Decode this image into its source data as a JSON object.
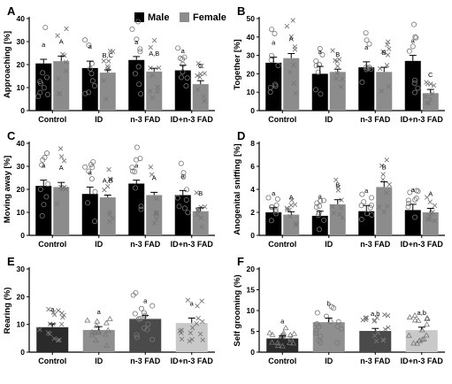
{
  "legend": {
    "position": "top-center",
    "items": [
      {
        "label": "Male",
        "color": "#000000"
      },
      {
        "label": "Female",
        "color": "#8c8c8c"
      }
    ]
  },
  "chart_data": [
    {
      "panel": "A",
      "type": "bar",
      "ylabel": "Approaching [%]",
      "ylim": [
        0,
        40
      ],
      "yticks": [
        0,
        10,
        20,
        30,
        40
      ],
      "categories": [
        "Control",
        "ID",
        "n-3 FAD",
        "ID+n-3 FAD"
      ],
      "series": [
        {
          "name": "Male",
          "values": [
            20.5,
            18.5,
            22,
            17.5
          ],
          "sem": [
            1.8,
            3,
            1.5,
            2.2
          ],
          "letters": [
            "a",
            "a",
            "a",
            "a"
          ]
        },
        {
          "name": "Female",
          "values": [
            21.5,
            16.5,
            17,
            11.5
          ],
          "sem": [
            2.2,
            1.2,
            1.4,
            1.5
          ],
          "letters": [
            "A",
            "B,C",
            "A,B",
            "C"
          ]
        }
      ]
    },
    {
      "panel": "B",
      "type": "bar",
      "ylabel": "Together [%]",
      "ylim": [
        0,
        50
      ],
      "yticks": [
        0,
        10,
        20,
        30,
        40,
        50
      ],
      "categories": [
        "Control",
        "ID",
        "n-3 FAD",
        "ID+n-3 FAD"
      ],
      "series": [
        {
          "name": "Male",
          "values": [
            26,
            20,
            23.5,
            27
          ],
          "sem": [
            3,
            4,
            3,
            3
          ],
          "letters": [
            "a",
            "a",
            "a",
            "a"
          ]
        },
        {
          "name": "Female",
          "values": [
            28.5,
            21,
            21,
            9.5
          ],
          "sem": [
            2.5,
            1.5,
            2.5,
            2
          ],
          "letters": [
            "A",
            "B",
            "B",
            "C"
          ]
        }
      ]
    },
    {
      "panel": "C",
      "type": "bar",
      "ylabel": "Moving away [%]",
      "ylim": [
        0,
        40
      ],
      "yticks": [
        0,
        10,
        20,
        30,
        40
      ],
      "categories": [
        "Control",
        "ID",
        "n-3 FAD",
        "ID+n-3 FAD"
      ],
      "series": [
        {
          "name": "Male",
          "values": [
            21.5,
            18,
            22.5,
            17.5
          ],
          "sem": [
            2.5,
            3,
            1.5,
            2
          ],
          "letters": [
            "a",
            "a",
            "a",
            "a"
          ]
        },
        {
          "name": "Female",
          "values": [
            21,
            16.5,
            17.5,
            10.5
          ],
          "sem": [
            2,
            1,
            1.2,
            1.5
          ],
          "letters": [
            "A",
            "A,B",
            "A",
            "B"
          ]
        }
      ]
    },
    {
      "panel": "D",
      "type": "bar",
      "ylabel": "Anogenital sniffing [%]",
      "ylim": [
        0,
        8
      ],
      "yticks": [
        0,
        2,
        4,
        6,
        8
      ],
      "categories": [
        "Control",
        "ID",
        "n-3 FAD",
        "ID+n-3 FAD"
      ],
      "series": [
        {
          "name": "Male",
          "values": [
            2,
            1.7,
            2.1,
            2.2
          ],
          "sem": [
            0.4,
            0.4,
            0.5,
            0.5
          ],
          "letters": [
            "a",
            "a",
            "a",
            "a"
          ]
        },
        {
          "name": "Female",
          "values": [
            1.8,
            2.7,
            4.2,
            2
          ],
          "sem": [
            0.25,
            0.4,
            0.45,
            0.35
          ],
          "letters": [
            "A",
            "B",
            "B",
            "A"
          ]
        }
      ]
    },
    {
      "panel": "E",
      "type": "bar",
      "ylabel": "Rearing (%)",
      "ylim": [
        0,
        30
      ],
      "yticks": [
        0,
        10,
        20,
        30
      ],
      "categories": [
        "Control",
        "ID",
        "n-3 FAD",
        "ID+n-3 FAD"
      ],
      "series": [
        {
          "name": "Rearing",
          "values": [
            9,
            8,
            12,
            10.5
          ],
          "sem": [
            1.2,
            1.2,
            1.2,
            1.8
          ],
          "letters": [
            "a",
            "a",
            "a",
            "a"
          ]
        }
      ]
    },
    {
      "panel": "F",
      "type": "bar",
      "ylabel": "Self grooming (%)",
      "ylim": [
        0,
        20
      ],
      "yticks": [
        0,
        5,
        10,
        15,
        20
      ],
      "categories": [
        "Control",
        "ID",
        "n-3 FAD",
        "ID+n-3 FAD"
      ],
      "series": [
        {
          "name": "Self grooming",
          "values": [
            3.3,
            7.2,
            5.1,
            5.3
          ],
          "sem": [
            0.6,
            1.0,
            0.6,
            0.7
          ],
          "letters": [
            "a",
            "b",
            "a,b",
            "a,b"
          ]
        }
      ]
    }
  ]
}
